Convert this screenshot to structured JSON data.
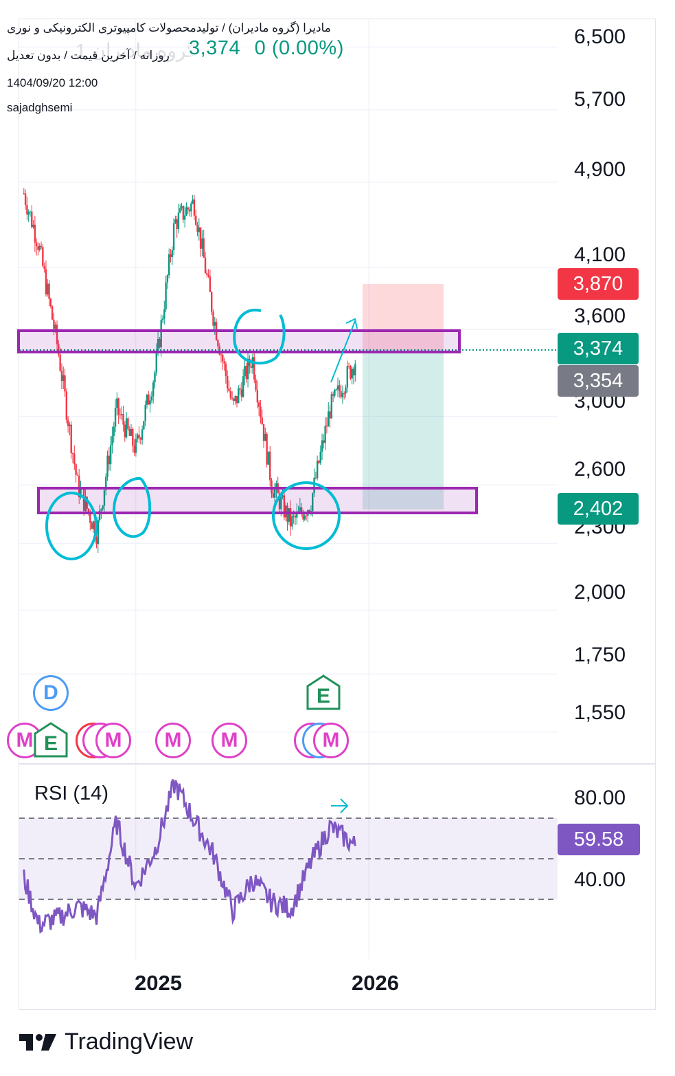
{
  "header": {
    "title_line": "مادیرا (گروه مادیران) / تولیدمحصولات کامپیوتری الکترونیکی و نوری",
    "subtitle_line": "روزانه / آخرین قیمت / بدون تعدیل",
    "ghost_symbol": "گروه مادیران 1",
    "last_price": "3,374",
    "change": "0 (0.00%)",
    "datetime": "1404/09/20 12:00",
    "author": "sajadghsemi"
  },
  "price_axis": {
    "ticks": [
      "6,500",
      "5,700",
      "4,900",
      "4,100",
      "3,600",
      "3,000",
      "2,600",
      "2,300",
      "2,000",
      "1,750",
      "1,550"
    ],
    "scale": "log"
  },
  "price_tags": {
    "target": {
      "label": "3,870",
      "color": "#f23645"
    },
    "last": {
      "label": "3,374",
      "color": "#089981"
    },
    "reference": {
      "label": "3,354",
      "color": "#787b86"
    },
    "stop": {
      "label": "2,402",
      "color": "#089981"
    }
  },
  "rsi": {
    "title": "RSI (14)",
    "value_label": "59.58",
    "ticks": [
      "80.00",
      "40.00"
    ],
    "band": [
      30,
      70
    ],
    "middle": 50,
    "color": "#7e57c2"
  },
  "time_axis": {
    "labels": [
      "2025",
      "2026"
    ]
  },
  "events": {
    "dividend": "D",
    "earnings": "E",
    "meeting": "M"
  },
  "branding": {
    "name": "TradingView"
  },
  "chart_data": [
    {
      "type": "candlestick",
      "title": "مادیرا (گروه مادیران) / تولیدمحصولات کامپیوتری الکترونیکی و نوری",
      "interval": "روزانه",
      "x_axis": {
        "labels": [
          "2025",
          "2026"
        ]
      },
      "y_axis": {
        "scale": "log",
        "range": [
          1450,
          6900
        ]
      },
      "grid": true,
      "series": [
        {
          "name": "Close",
          "points": [
            [
              "2024-07",
              4950
            ],
            [
              "2024-08",
              4300
            ],
            [
              "2024-09",
              3450
            ],
            [
              "2024-10",
              2600
            ],
            [
              "2024-11",
              2350
            ],
            [
              "2024-12",
              3050
            ],
            [
              "2025-01",
              2800
            ],
            [
              "2025-02",
              3300
            ],
            [
              "2025-03",
              4500
            ],
            [
              "2025-04",
              4700
            ],
            [
              "2025-05",
              3700
            ],
            [
              "2025-06",
              3050
            ],
            [
              "2025-07",
              3400
            ],
            [
              "2025-08",
              2600
            ],
            [
              "2025-09",
              2400
            ],
            [
              "2025-10",
              2500
            ],
            [
              "2025-11",
              3050
            ],
            [
              "2025-12",
              3374
            ]
          ]
        }
      ],
      "annotations": {
        "resistance_zone": [
          3380,
          3540
        ],
        "support_zone": [
          2355,
          2470
        ],
        "position": {
          "entry": 3374,
          "target": 3870,
          "stop": 2402
        },
        "last_price": 3374
      }
    },
    {
      "type": "line",
      "title": "RSI (14)",
      "x_axis": {
        "labels": [
          "2025",
          "2026"
        ]
      },
      "y_axis": {
        "range": [
          10,
          95
        ],
        "ticks": [
          80,
          40
        ]
      },
      "bands": [
        30,
        50,
        70
      ],
      "series": [
        {
          "name": "RSI (14)",
          "points": [
            [
              "2024-07",
              52
            ],
            [
              "2024-08",
              25
            ],
            [
              "2024-09",
              28
            ],
            [
              "2024-10",
              33
            ],
            [
              "2024-11",
              29
            ],
            [
              "2024-12",
              70
            ],
            [
              "2025-01",
              42
            ],
            [
              "2025-02",
              58
            ],
            [
              "2025-03",
              87
            ],
            [
              "2025-04",
              71
            ],
            [
              "2025-05",
              56
            ],
            [
              "2025-06",
              31
            ],
            [
              "2025-07",
              45
            ],
            [
              "2025-08",
              35
            ],
            [
              "2025-09",
              32
            ],
            [
              "2025-10",
              52
            ],
            [
              "2025-11",
              68
            ],
            [
              "2025-12",
              59.58
            ]
          ]
        }
      ]
    }
  ]
}
